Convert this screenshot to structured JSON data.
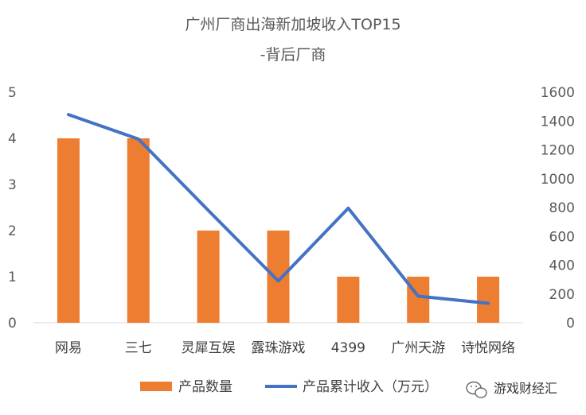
{
  "chart_data": {
    "type": "bar",
    "title": "广州厂商出海新加坡收入TOP15",
    "subtitle": "-背后厂商",
    "categories": [
      "网易",
      "三七",
      "灵犀互娱",
      "露珠游戏",
      "4399",
      "广州天游",
      "诗悦网络"
    ],
    "series": [
      {
        "name": "产品数量",
        "type": "bar",
        "axis": "left",
        "color": "#ED7D31",
        "values": [
          4,
          4,
          2,
          2,
          1,
          1,
          1
        ]
      },
      {
        "name": "产品累计收入（万元）",
        "type": "line",
        "axis": "right",
        "color": "#4472C4",
        "values": [
          1445,
          1275,
          780,
          290,
          795,
          185,
          135
        ]
      }
    ],
    "y_left": {
      "ylim": [
        0,
        5
      ],
      "ticks": [
        "0",
        "1",
        "2",
        "3",
        "4",
        "5"
      ]
    },
    "y_right": {
      "ylim": [
        0,
        1600
      ],
      "ticks": [
        "0",
        "200",
        "400",
        "600",
        "800",
        "1000",
        "1200",
        "1400",
        "1600"
      ]
    },
    "grid": false,
    "legend": "bottom"
  },
  "watermark": {
    "text": "游戏财经汇",
    "icon": "wechat-icon"
  }
}
